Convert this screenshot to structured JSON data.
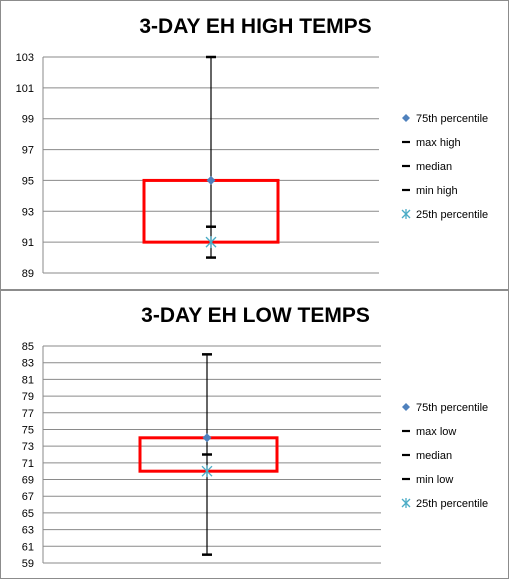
{
  "chart_data": [
    {
      "type": "box",
      "title": "3-DAY EH HIGH TEMPS",
      "ylim": [
        89,
        103
      ],
      "yticks": [
        "89",
        "91",
        "93",
        "95",
        "97",
        "99",
        "101",
        "103"
      ],
      "grid": true,
      "legend_position": "right",
      "series": [
        {
          "name": "75th percentile",
          "marker": "diamond",
          "color": "#4f81bd",
          "value": 95
        },
        {
          "name": "max high",
          "marker": "dash",
          "color": "#000000",
          "value": 103
        },
        {
          "name": "median",
          "marker": "dash",
          "color": "#000000",
          "value": 92
        },
        {
          "name": "min high",
          "marker": "dash",
          "color": "#000000",
          "value": 90
        },
        {
          "name": "25th percentile",
          "marker": "star",
          "color": "#4bacc6",
          "value": 91
        }
      ],
      "box_color": "#ff0000"
    },
    {
      "type": "box",
      "title": "3-DAY EH LOW TEMPS",
      "ylim": [
        59,
        85
      ],
      "yticks": [
        "59",
        "61",
        "63",
        "65",
        "67",
        "69",
        "71",
        "73",
        "75",
        "77",
        "79",
        "81",
        "83",
        "85"
      ],
      "grid": true,
      "legend_position": "right",
      "series": [
        {
          "name": "75th percentile",
          "marker": "diamond",
          "color": "#4f81bd",
          "value": 74
        },
        {
          "name": "max low",
          "marker": "dash",
          "color": "#000000",
          "value": 84
        },
        {
          "name": "median",
          "marker": "dash",
          "color": "#000000",
          "value": 72
        },
        {
          "name": "min low",
          "marker": "dash",
          "color": "#000000",
          "value": 60
        },
        {
          "name": "25th percentile",
          "marker": "star",
          "color": "#4bacc6",
          "value": 70
        }
      ],
      "box_color": "#ff0000"
    }
  ]
}
